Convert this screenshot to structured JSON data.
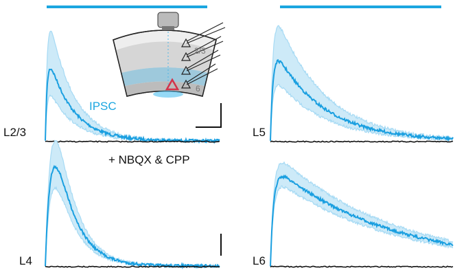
{
  "panels": [
    {
      "label": "L2/3"
    },
    {
      "label": "L5"
    },
    {
      "label": "L4"
    },
    {
      "label": "L6"
    }
  ],
  "annotations": {
    "ipsc": "IPSC",
    "drug": "+ NBQX & CPP"
  },
  "inset": {
    "layer_top": "2/3",
    "layer_bottom": "6"
  }
}
